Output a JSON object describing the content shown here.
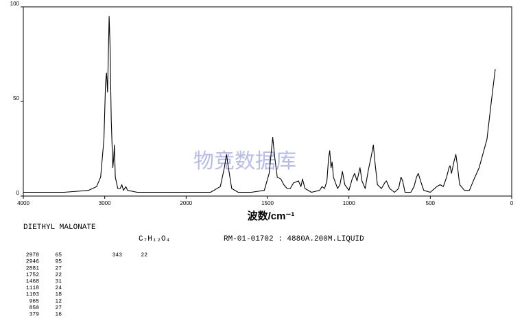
{
  "chart_data": {
    "type": "line",
    "x_label": "波数/cm⁻¹",
    "xlim": [
      4000,
      0
    ],
    "xticks": [
      4000,
      3000,
      2000,
      1500,
      1000,
      500,
      0
    ],
    "ylim": [
      0,
      100
    ],
    "yticks": [
      0,
      50,
      100
    ],
    "color": "#000000",
    "x": [
      4000,
      3500,
      3200,
      3100,
      3050,
      3010,
      2990,
      2978,
      2965,
      2946,
      2935,
      2920,
      2900,
      2890,
      2881,
      2870,
      2840,
      2810,
      2790,
      2770,
      2740,
      2720,
      2600,
      2000,
      1850,
      1790,
      1765,
      1752,
      1740,
      1720,
      1680,
      1600,
      1520,
      1490,
      1468,
      1455,
      1440,
      1418,
      1400,
      1380,
      1360,
      1340,
      1310,
      1295,
      1285,
      1270,
      1230,
      1180,
      1165,
      1150,
      1135,
      1125,
      1118,
      1110,
      1103,
      1095,
      1070,
      1055,
      1040,
      1025,
      1000,
      980,
      965,
      950,
      940,
      932,
      920,
      900,
      880,
      865,
      850,
      840,
      825,
      800,
      780,
      770,
      750,
      720,
      695,
      680,
      670,
      655,
      620,
      600,
      585,
      574,
      560,
      540,
      500,
      460,
      440,
      420,
      400,
      385,
      379,
      370,
      355,
      343,
      335,
      320,
      290,
      260,
      236,
      200,
      152,
      125,
      101
    ],
    "values": [
      2,
      2,
      3,
      5,
      10,
      30,
      60,
      65,
      55,
      95,
      80,
      40,
      15,
      20,
      27,
      10,
      4,
      4,
      6,
      3,
      5,
      3,
      2,
      2,
      2,
      5,
      15,
      22,
      15,
      4,
      2,
      2,
      3,
      12,
      31,
      20,
      10,
      9,
      6,
      4,
      4,
      7,
      8,
      5,
      9,
      4,
      2,
      3,
      5,
      4,
      8,
      20,
      24,
      15,
      18,
      10,
      4,
      6,
      13,
      6,
      3,
      9,
      12,
      8,
      12,
      15,
      8,
      4,
      14,
      20,
      27,
      18,
      6,
      4,
      7,
      8,
      4,
      2,
      4,
      10,
      8,
      2,
      2,
      5,
      10,
      12,
      8,
      3,
      2,
      5,
      6,
      5,
      10,
      15,
      16,
      12,
      18,
      22,
      17,
      6,
      3,
      3,
      8,
      15,
      30,
      50,
      67
    ]
  },
  "watermark": "物竞数据库",
  "sample": {
    "name": "DIETHYL MALONATE",
    "formula": "C₇H₁₂O₄",
    "catalog": "RM-01-01702 : 4880A.200M.LIQUID"
  },
  "peaks": [
    [
      "2978",
      "65"
    ],
    [
      "2946",
      "95"
    ],
    [
      "2881",
      "27"
    ],
    [
      "1752",
      "22"
    ],
    [
      "1468",
      "31"
    ],
    [
      "1118",
      "24"
    ],
    [
      "1103",
      "18"
    ],
    [
      "965",
      "12"
    ],
    [
      "850",
      "27"
    ],
    [
      "379",
      "16"
    ]
  ],
  "peaks_col2": [
    [
      "343",
      "22"
    ]
  ]
}
